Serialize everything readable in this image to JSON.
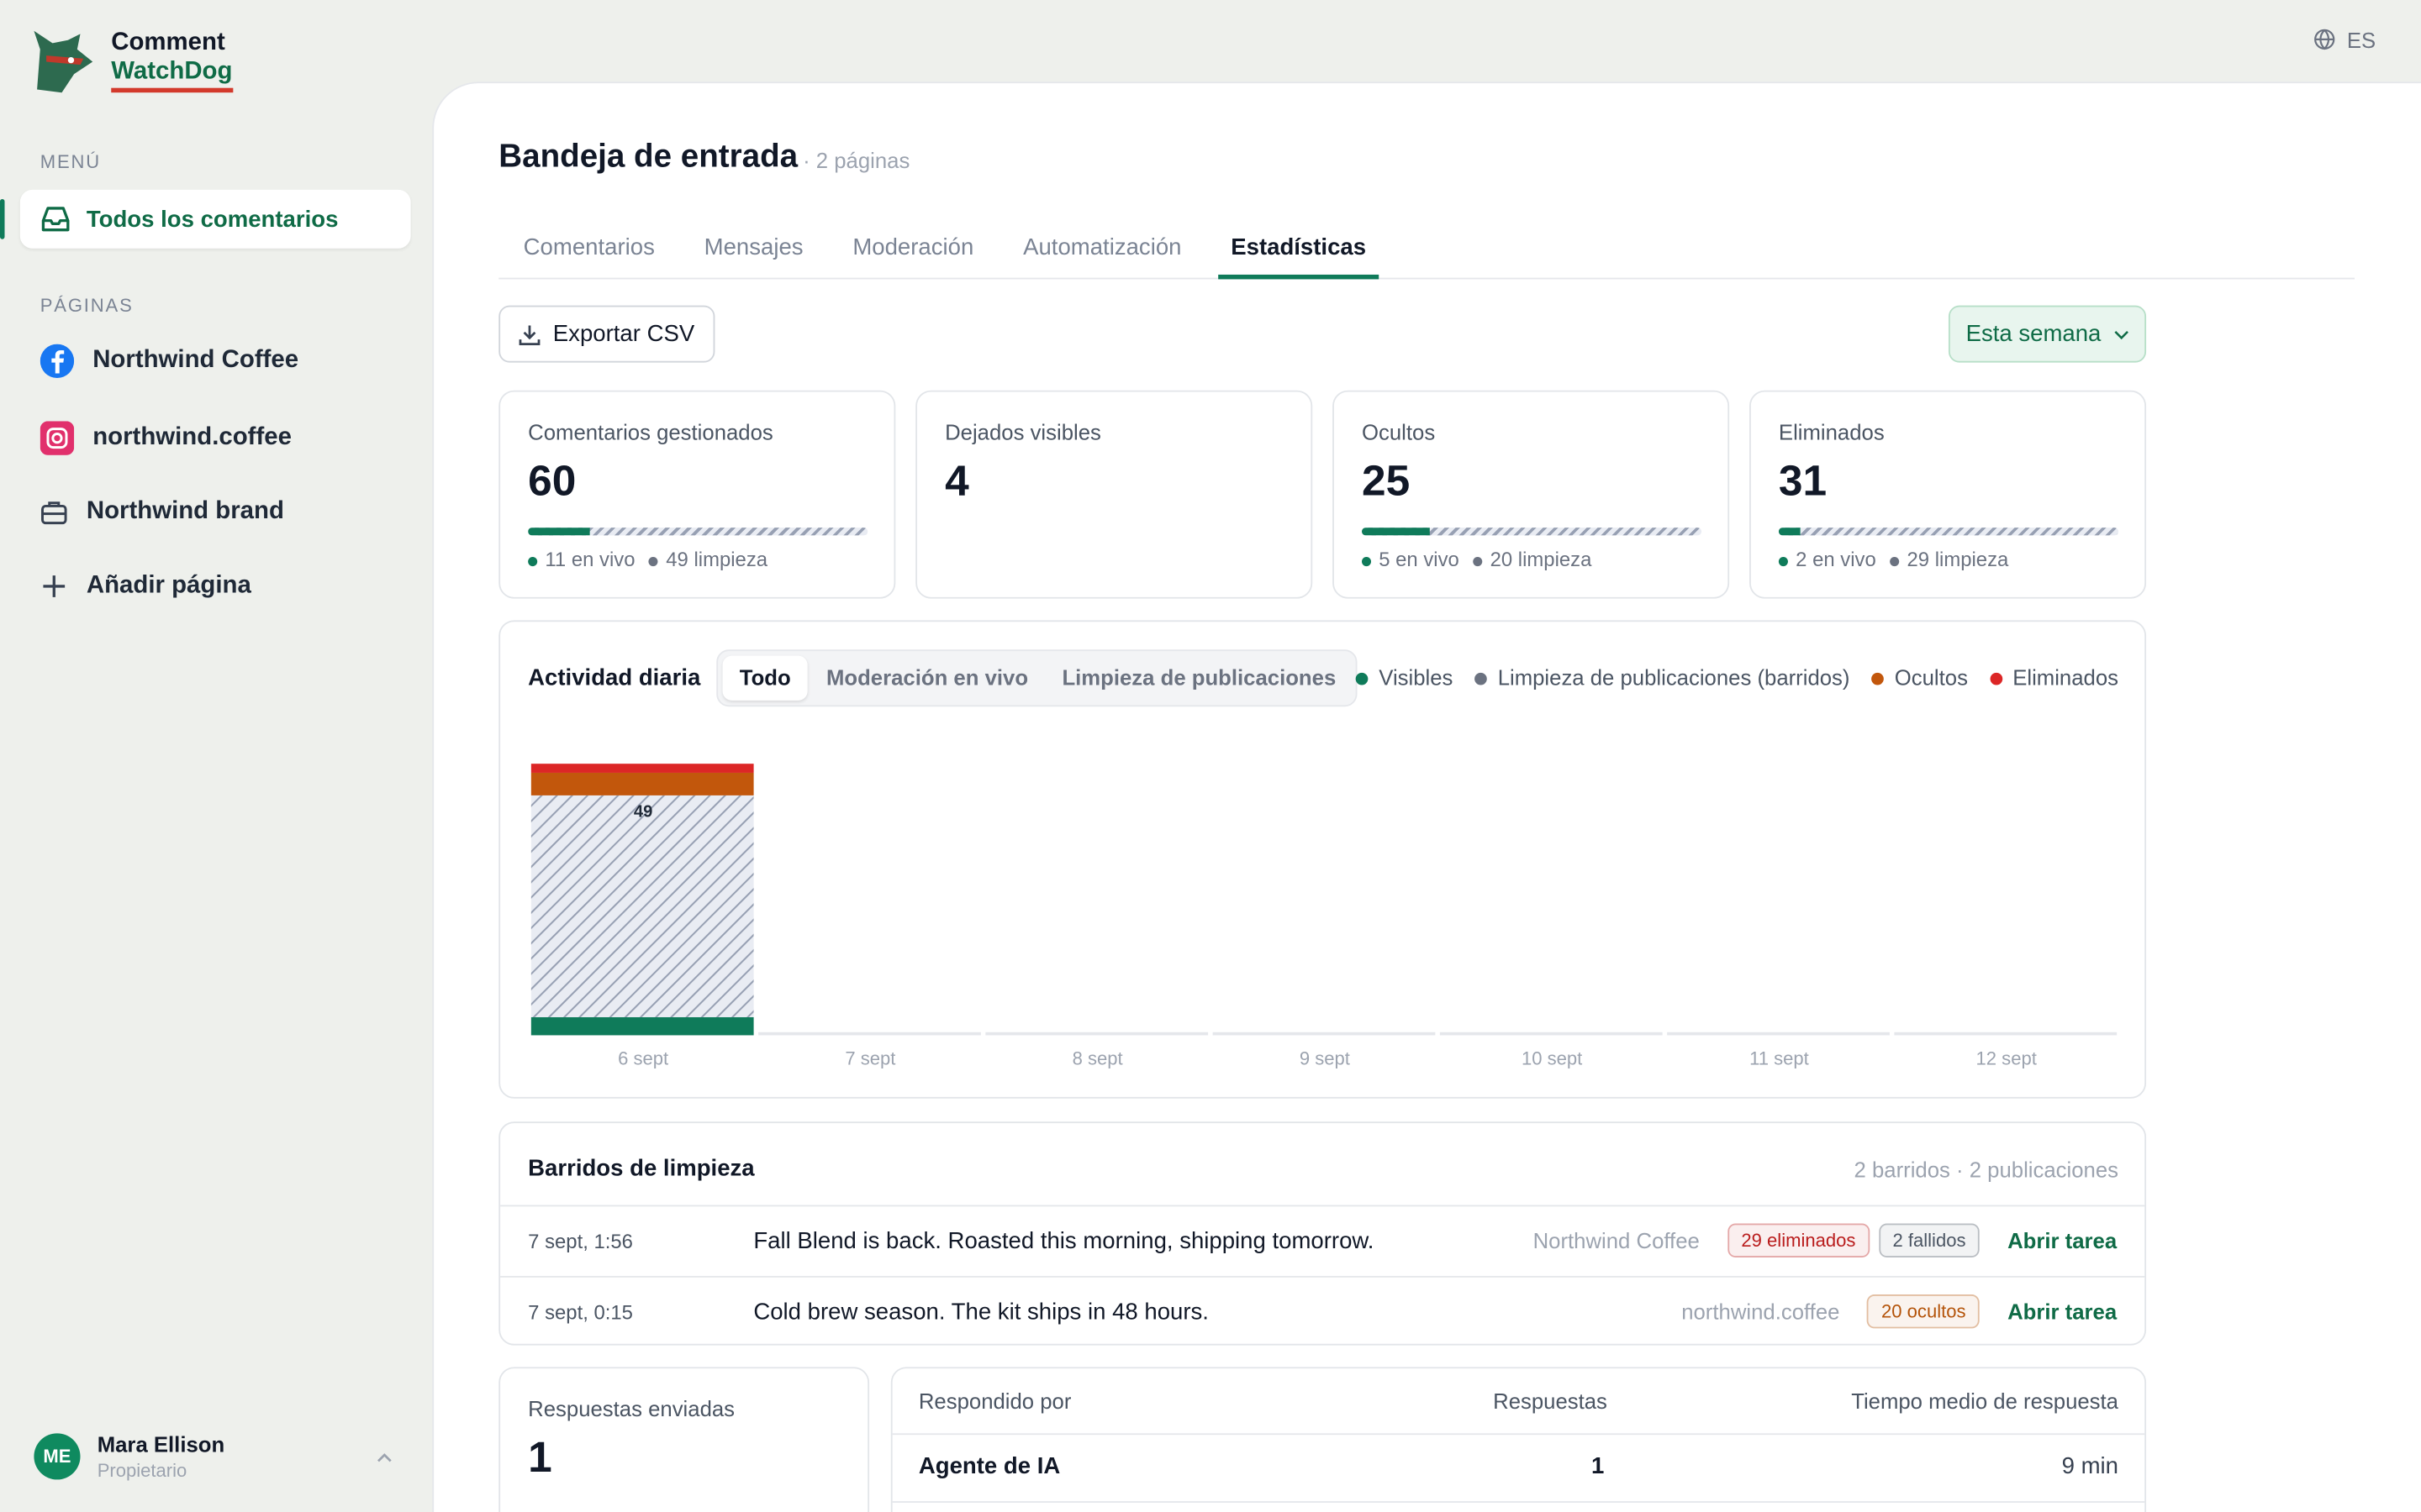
{
  "brand": {
    "line1": "Comment",
    "line2": "WatchDog"
  },
  "language": "ES",
  "sidebar": {
    "menu_label": "MENÚ",
    "menu_item": "Todos los comentarios",
    "pages_label": "PÁGINAS",
    "pages": [
      "Northwind Coffee",
      "northwind.coffee",
      "Northwind brand"
    ],
    "add_page": "Añadir página"
  },
  "user": {
    "initials": "ME",
    "name": "Mara Ellison",
    "role": "Propietario"
  },
  "header": {
    "title": "Bandeja de entrada",
    "subtitle": "· 2 páginas"
  },
  "tabs": [
    "Comentarios",
    "Mensajes",
    "Moderación",
    "Automatización",
    "Estadísticas"
  ],
  "active_tab": 4,
  "toolbar": {
    "export": "Exportar CSV",
    "period": "Esta semana"
  },
  "stats": {
    "live_label": "en vivo",
    "cleanup_label": "limpieza",
    "cards": [
      {
        "label": "Comentarios gestionados",
        "value": 60,
        "live": 11,
        "cleanup": 49
      },
      {
        "label": "Dejados visibles",
        "value": 4
      },
      {
        "label": "Ocultos",
        "value": 25,
        "live": 5,
        "cleanup": 20
      },
      {
        "label": "Eliminados",
        "value": 31,
        "live": 2,
        "cleanup": 29
      }
    ]
  },
  "chart_data": {
    "type": "bar",
    "stacked": true,
    "title": "Actividad diaria",
    "filters": [
      "Todo",
      "Moderación en vivo",
      "Limpieza de publicaciones"
    ],
    "active_filter": 0,
    "categories": [
      "6 sept",
      "7 sept",
      "8 sept",
      "9 sept",
      "10 sept",
      "11 sept",
      "12 sept"
    ],
    "series": [
      {
        "name": "Visibles",
        "color": "#0f7b5a",
        "values": [
          4,
          0,
          0,
          0,
          0,
          0,
          0
        ]
      },
      {
        "name": "Limpieza de publicaciones (barridos)",
        "color": "#6b7280",
        "hatched": true,
        "values": [
          49,
          0,
          0,
          0,
          0,
          0,
          0
        ]
      },
      {
        "name": "Ocultos",
        "color": "#c2570c",
        "values": [
          5,
          0,
          0,
          0,
          0,
          0,
          0
        ]
      },
      {
        "name": "Eliminados",
        "color": "#dc2626",
        "values": [
          2,
          0,
          0,
          0,
          0,
          0,
          0
        ]
      }
    ],
    "data_labels_series": 1
  },
  "sweeps": {
    "title": "Barridos de limpieza",
    "summary": "2 barridos · 2 publicaciones",
    "rows": [
      {
        "time": "7 sept, 1:56",
        "text": "Fall Blend is back. Roasted this morning, shipping tomorrow.",
        "page": "Northwind Coffee",
        "badges": [
          {
            "text": "29 eliminados",
            "color": "#b91c1c"
          },
          {
            "text": "2 fallidos",
            "color": "#4b5563"
          }
        ],
        "action": "Abrir tarea"
      },
      {
        "time": "7 sept, 0:15",
        "text": "Cold brew season. The kit ships in 48 hours.",
        "page": "northwind.coffee",
        "badges": [
          {
            "text": "20 ocultos",
            "color": "#b45309"
          }
        ],
        "action": "Abrir tarea"
      }
    ]
  },
  "responses": {
    "label": "Respuestas enviadas",
    "value": 1
  },
  "responders": {
    "headers": [
      "Respondido por",
      "Respuestas",
      "Tiempo medio de respuesta"
    ],
    "rows": [
      [
        "Agente de IA",
        1,
        "9 min"
      ]
    ]
  }
}
